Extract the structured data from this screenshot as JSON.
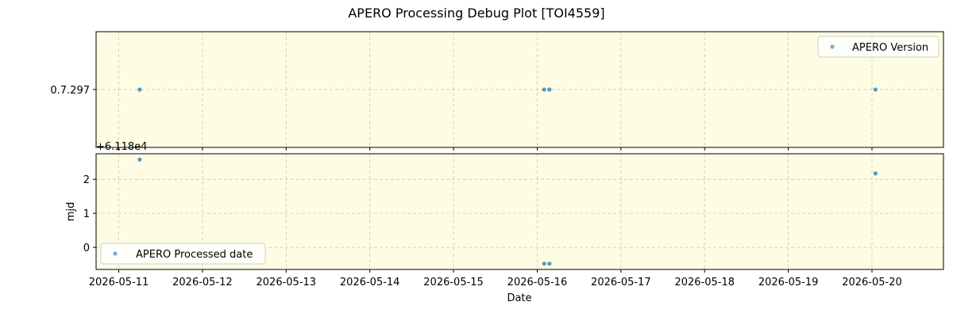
{
  "figure": {
    "title": "APERO Processing Debug Plot [TOI4559]",
    "background": "#ffffff",
    "panel_face": "#fefde4",
    "marker_color": "#1f77b4"
  },
  "chart_data": [
    {
      "type": "scatter",
      "title": "",
      "xlabel": "",
      "ylabel": "",
      "x_type": "date",
      "xlim": [
        "2026-05-10T17:30:00",
        "2026-05-20T20:30:00"
      ],
      "ylim": [
        7.257,
        7.337
      ],
      "ytick_values": [
        7.297
      ],
      "ytick_labels": [
        "0.7.297"
      ],
      "grid": true,
      "legend_position": "top-right",
      "series": [
        {
          "name": "APERO Version",
          "points": [
            {
              "x": "2026-05-11T06:00:00",
              "y": 7.297
            },
            {
              "x": "2026-05-16T02:00:00",
              "y": 7.297
            },
            {
              "x": "2026-05-16T03:30:00",
              "y": 7.297
            },
            {
              "x": "2026-05-20T01:00:00",
              "y": 7.297
            }
          ]
        }
      ]
    },
    {
      "type": "scatter",
      "title": "",
      "xlabel": "Date",
      "ylabel": "mjd",
      "x_type": "date",
      "xlim": [
        "2026-05-10T17:30:00",
        "2026-05-20T20:30:00"
      ],
      "ylim": [
        -0.65,
        2.75
      ],
      "offset_text": "+6.118e4",
      "ytick_values": [
        0,
        1,
        2
      ],
      "ytick_labels": [
        "0",
        "1",
        "2"
      ],
      "xtick_labels": [
        "2026-05-11",
        "2026-05-12",
        "2026-05-13",
        "2026-05-14",
        "2026-05-15",
        "2026-05-16",
        "2026-05-17",
        "2026-05-18",
        "2026-05-19",
        "2026-05-20"
      ],
      "grid": true,
      "legend_position": "bottom-left",
      "series": [
        {
          "name": "APERO Processed date",
          "points": [
            {
              "x": "2026-05-11T06:00:00",
              "y": 2.58
            },
            {
              "x": "2026-05-16T02:00:00",
              "y": -0.48
            },
            {
              "x": "2026-05-16T03:30:00",
              "y": -0.48
            },
            {
              "x": "2026-05-20T01:00:00",
              "y": 2.17
            }
          ]
        }
      ]
    }
  ]
}
